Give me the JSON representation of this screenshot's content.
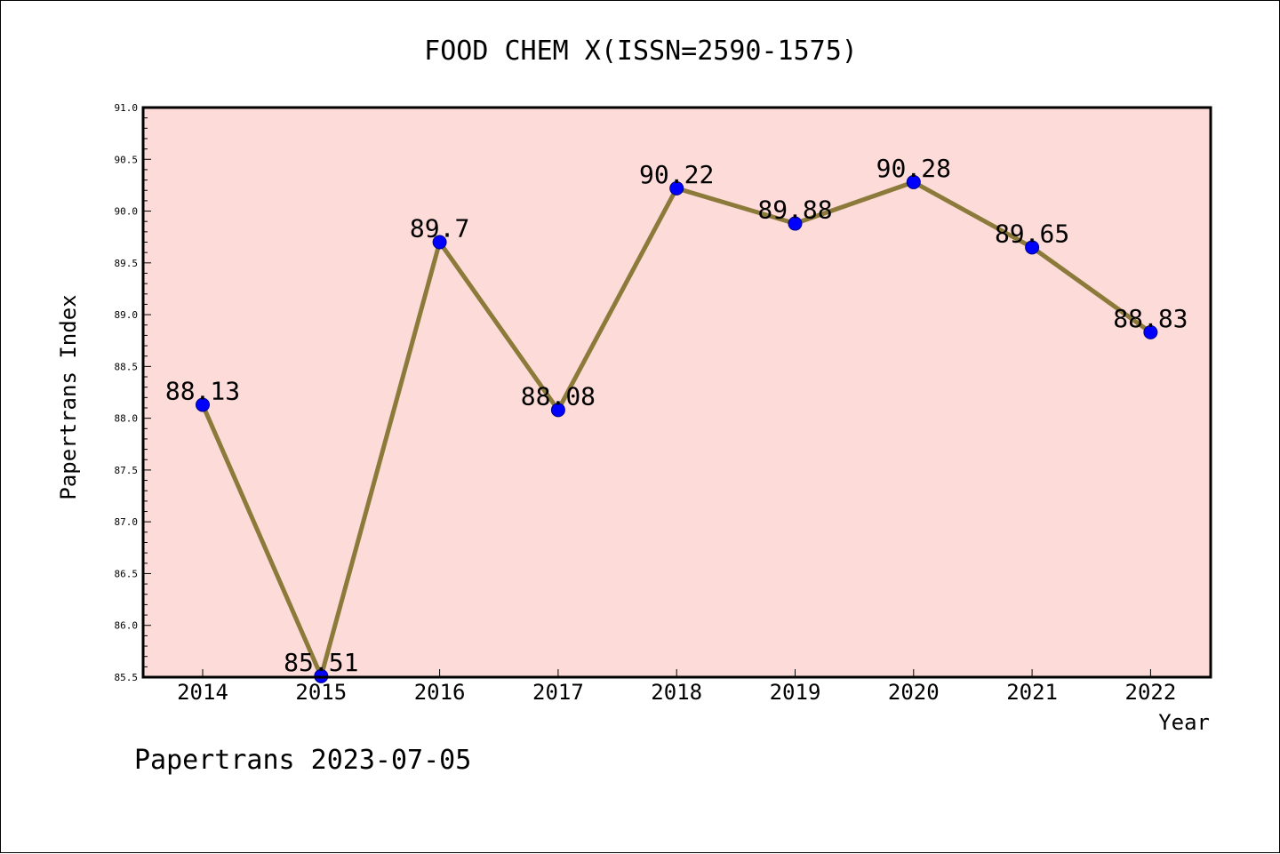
{
  "chart_data": {
    "type": "line",
    "title": "FOOD CHEM X(ISSN=2590-1575)",
    "xlabel": "Year",
    "ylabel": "Papertrans Index",
    "categories": [
      "2014",
      "2015",
      "2016",
      "2017",
      "2018",
      "2019",
      "2020",
      "2021",
      "2022"
    ],
    "series": [
      {
        "values": [
          88.13,
          85.51,
          89.7,
          88.08,
          90.22,
          89.88,
          90.28,
          89.65,
          88.83
        ]
      }
    ],
    "data_labels": [
      "88.13",
      "85.51",
      "89.7",
      "88.08",
      "90.22",
      "89.88",
      "90.28",
      "89.65",
      "88.83"
    ],
    "ylim": [
      85.5,
      91.0
    ],
    "yticks": [
      "85.5",
      "86.0",
      "86.5",
      "87.0",
      "87.5",
      "88.0",
      "88.5",
      "89.0",
      "89.5",
      "90.0",
      "90.5",
      "91.0"
    ],
    "ytick_values": [
      85.5,
      86.0,
      86.5,
      87.0,
      87.5,
      88.0,
      88.5,
      89.0,
      89.5,
      90.0,
      90.5,
      91.0
    ],
    "grid": false,
    "colors": {
      "plot_background": "#fddbd8",
      "line": "#8b7a3a",
      "marker": "#0000ff",
      "marker_edge": "#00008b"
    }
  },
  "footer": "Papertrans 2023-07-05"
}
